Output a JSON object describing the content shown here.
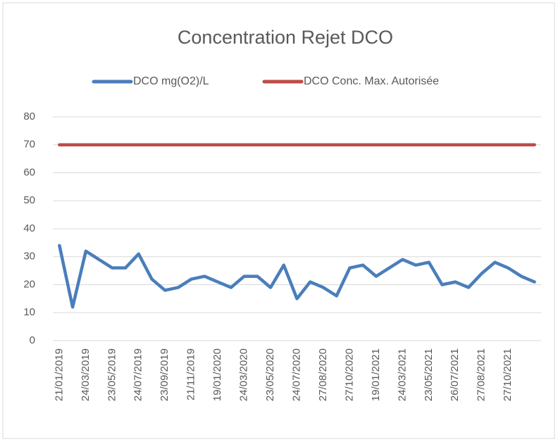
{
  "chart_data": {
    "type": "line",
    "title": "Concentration Rejet DCO",
    "categories": [
      "21/01/2019",
      null,
      "24/03/2019",
      null,
      "23/05/2019",
      null,
      "24/07/2019",
      null,
      "23/09/2019",
      null,
      "21/11/2019",
      null,
      "19/01/2020",
      null,
      "24/03/2020",
      null,
      "23/05/2020",
      null,
      "24/07/2020",
      null,
      "27/08/2020",
      null,
      "27/10/2020",
      null,
      "19/01/2021",
      null,
      "24/03/2021",
      null,
      "23/05/2021",
      null,
      "26/07/2021",
      null,
      "27/08/2021",
      null,
      "27/10/2021",
      null,
      null
    ],
    "series": [
      {
        "name": "DCO mg(O2)/L",
        "color": "#4a7ebb",
        "values": [
          34,
          12,
          32,
          29,
          26,
          26,
          31,
          22,
          18,
          19,
          22,
          23,
          21,
          19,
          23,
          23,
          19,
          27,
          15,
          21,
          19,
          16,
          26,
          27,
          23,
          26,
          29,
          27,
          28,
          20,
          21,
          19,
          24,
          28,
          26,
          23,
          21
        ]
      },
      {
        "name": "DCO Conc. Max. Autorisée",
        "color": "#be4b48",
        "values": [
          70,
          70,
          70,
          70,
          70,
          70,
          70,
          70,
          70,
          70,
          70,
          70,
          70,
          70,
          70,
          70,
          70,
          70,
          70,
          70,
          70,
          70,
          70,
          70,
          70,
          70,
          70,
          70,
          70,
          70,
          70,
          70,
          70,
          70,
          70,
          70,
          70
        ]
      }
    ],
    "ylim": [
      0,
      80
    ],
    "yticks": [
      0,
      10,
      20,
      30,
      40,
      50,
      60,
      70,
      80
    ],
    "grid": true,
    "legend": "top"
  }
}
